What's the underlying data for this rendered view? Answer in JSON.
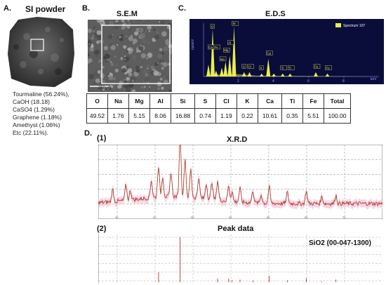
{
  "panels": {
    "a": {
      "label": "A.",
      "title": "SI powder"
    },
    "b": {
      "label": "B.",
      "title": "S.E.M",
      "scale_bar": "250μm"
    },
    "c": {
      "label": "C.",
      "title": "E.D.S",
      "legend": "Spectrum 107",
      "y_axis_label": "cps/eV",
      "x_axis_label": "keV",
      "x_ticks": [
        "2",
        "4",
        "6",
        "8"
      ],
      "peak_labels": [
        "O",
        "Ca",
        "Fe",
        "Si",
        "Mg",
        "Al",
        "Na",
        "S",
        "Cl",
        "K",
        "Ca",
        "Ti",
        "Ti",
        "Fe",
        "Fe"
      ]
    },
    "d": {
      "label": "D.",
      "sub1_label": "(1)",
      "sub1_title": "X.R.D",
      "sub2_label": "(2)",
      "sub2_title": "Peak data",
      "reference": "SiO2 (00-047-1300)"
    }
  },
  "composition": [
    "Tourmaline (56.24%),",
    "CaOH (18.18)",
    "CaSO4 (1.29%)",
    "Graphene (1.18%)",
    "Amethyst (1.06%)",
    "Etc (22.11%)."
  ],
  "eds_table": {
    "headers": [
      "O",
      "Na",
      "Mg",
      "Al",
      "Si",
      "S",
      "Cl",
      "K",
      "Ca",
      "Ti",
      "Fe",
      "Total"
    ],
    "values": [
      "49.52",
      "1.76",
      "5.15",
      "8.06",
      "16.88",
      "0.74",
      "1.19",
      "0.22",
      "10.61",
      "0.35",
      "5.51",
      "100.00"
    ]
  },
  "chart_data": [
    {
      "type": "bar",
      "title": "E.D.S",
      "ylabel": "cps/eV",
      "xlabel": "keV",
      "x": [
        0.28,
        0.52,
        0.71,
        1.04,
        1.25,
        1.49,
        1.74,
        2.31,
        2.62,
        3.31,
        3.69,
        4.01,
        4.51,
        4.93,
        6.4,
        7.06
      ],
      "y": [
        8,
        32,
        4,
        6,
        10,
        14,
        34,
        3,
        3,
        2,
        12,
        2,
        2,
        2,
        3,
        2
      ],
      "xlim": [
        0,
        10
      ],
      "ylim": [
        0,
        36
      ]
    },
    {
      "type": "line",
      "title": "X.R.D",
      "xlim": [
        5,
        80
      ],
      "x_ticks": [
        "10",
        "20",
        "30",
        "40",
        "50",
        "60",
        "70"
      ],
      "note": "noisy diffraction pattern; main peak near 2θ≈26.6"
    },
    {
      "type": "bar",
      "title": "Peak data",
      "x": [
        20.9,
        26.6,
        36.5,
        39.4,
        40.3,
        42.4,
        45.8,
        50.1,
        54.9,
        59.9,
        64.0,
        67.7
      ],
      "y": [
        22,
        100,
        8,
        8,
        4,
        6,
        4,
        14,
        4,
        9,
        2,
        6
      ],
      "xlim": [
        5,
        80
      ],
      "ylim": [
        0,
        100
      ]
    }
  ]
}
